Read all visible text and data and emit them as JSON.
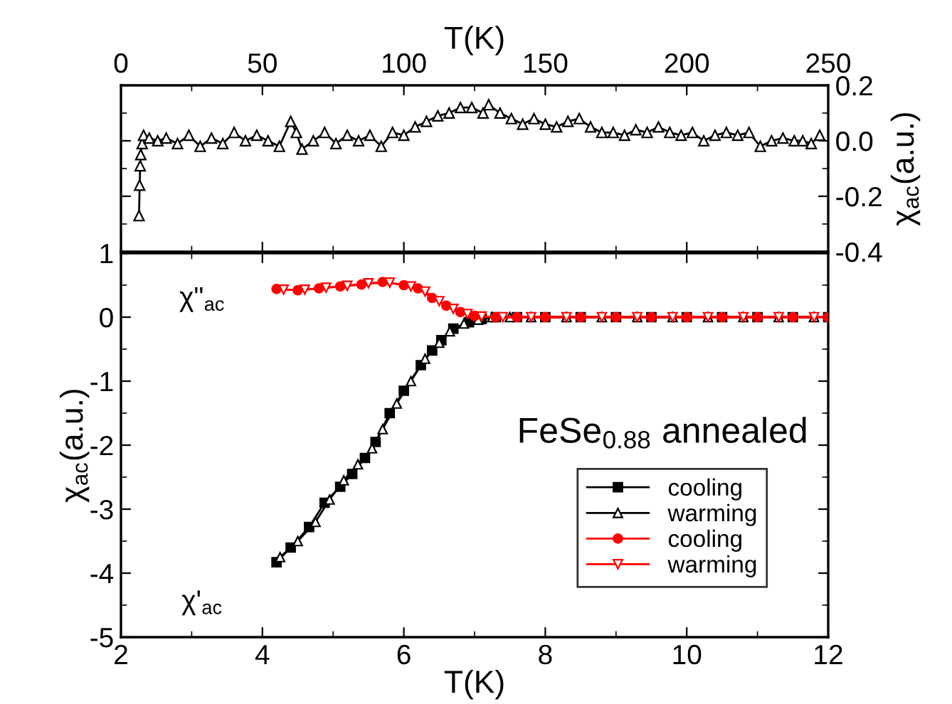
{
  "chart_data": [
    {
      "type": "line",
      "xlabel": "T(K)",
      "ylabel": "χ$_{ac}$(a.u.)",
      "xlim": [
        0,
        250
      ],
      "xticks": [
        0,
        50,
        100,
        150,
        200,
        250
      ],
      "ylim": [
        -0.4,
        0.2
      ],
      "yticks": [
        -0.4,
        -0.2,
        {
          "value": 0,
          "label": "0.0"
        },
        0.2
      ],
      "legend": false,
      "series": [
        {
          "color": "#000000",
          "marker": "triangle",
          "x": [
            6.4,
            6.6,
            6.8,
            7,
            7.5,
            8,
            10,
            13,
            16,
            20,
            24,
            28,
            32,
            36,
            40,
            44,
            48,
            52,
            56,
            60,
            62,
            64,
            68,
            72,
            76,
            80,
            84,
            88,
            92,
            96,
            100,
            104,
            108,
            112,
            116,
            120,
            124,
            128,
            130,
            134,
            138,
            142,
            146,
            150,
            154,
            158,
            162,
            166,
            170,
            174,
            178,
            182,
            186,
            190,
            194,
            198,
            202,
            206,
            210,
            214,
            218,
            222,
            226,
            230,
            234,
            238,
            241,
            244,
            247
          ],
          "values": [
            -0.27,
            -0.16,
            -0.09,
            -0.05,
            -0.01,
            0.02,
            0.01,
            0.0,
            0.01,
            -0.01,
            0.02,
            -0.02,
            0.01,
            -0.01,
            0.03,
            0.0,
            0.02,
            0.0,
            -0.02,
            0.07,
            0.03,
            -0.03,
            0.0,
            0.03,
            -0.01,
            0.02,
            0.0,
            0.02,
            -0.02,
            0.03,
            0.02,
            0.05,
            0.07,
            0.09,
            0.1,
            0.12,
            0.12,
            0.1,
            0.13,
            0.1,
            0.08,
            0.06,
            0.08,
            0.06,
            0.05,
            0.07,
            0.08,
            0.05,
            0.03,
            0.03,
            0.02,
            0.04,
            0.03,
            0.05,
            0.03,
            0.02,
            0.03,
            0.0,
            0.02,
            0.03,
            0.02,
            0.03,
            -0.02,
            0.0,
            0.01,
            0.0,
            0.0,
            -0.01,
            0.02
          ]
        }
      ]
    },
    {
      "type": "line",
      "xlabel": "T(K)",
      "ylabel": "χ$_{ac}$(a.u.)",
      "xlim": [
        2,
        12
      ],
      "xticks": [
        2,
        4,
        6,
        8,
        10,
        12
      ],
      "ylim": [
        -5,
        1
      ],
      "yticks": [
        -5,
        -4,
        -3,
        -2,
        -1,
        0,
        1
      ],
      "legend": "bottom right",
      "annotations": [
        "χ\"$_{ac}$",
        "χ'$_{ac}$",
        "FeSe$_{0.88}$ annealed"
      ],
      "series": [
        {
          "name": "cooling",
          "color": "#000000",
          "marker": "square",
          "x": [
            4.2,
            4.4,
            4.66,
            4.88,
            5.1,
            5.27,
            5.45,
            5.6,
            5.8,
            6.0,
            6.24,
            6.4,
            6.53,
            6.7,
            6.92,
            7.1,
            7.3,
            7.6,
            8.0,
            8.5,
            9.0,
            9.5,
            10.0,
            10.5,
            11.0,
            11.5,
            12.0
          ],
          "values": [
            -3.83,
            -3.6,
            -3.28,
            -2.9,
            -2.65,
            -2.45,
            -2.2,
            -1.95,
            -1.5,
            -1.15,
            -0.75,
            -0.52,
            -0.36,
            -0.18,
            -0.08,
            -0.03,
            0,
            0,
            0,
            0,
            0,
            0,
            0,
            0,
            0,
            0,
            0
          ]
        },
        {
          "name": "warming",
          "color": "#000000",
          "marker": "triangle",
          "x": [
            4.25,
            4.5,
            4.75,
            4.95,
            5.15,
            5.35,
            5.55,
            5.7,
            5.9,
            6.1,
            6.3,
            6.5,
            6.65,
            6.85,
            7.05,
            7.25,
            7.5,
            7.8,
            8.3,
            8.8,
            9.3,
            9.8,
            10.3,
            10.8,
            11.3,
            11.8
          ],
          "values": [
            -3.75,
            -3.5,
            -3.2,
            -2.85,
            -2.55,
            -2.3,
            -2.05,
            -1.75,
            -1.35,
            -1.0,
            -0.65,
            -0.4,
            -0.22,
            -0.1,
            -0.04,
            0,
            0,
            0,
            0,
            0,
            0,
            0,
            0,
            0,
            0,
            0
          ]
        },
        {
          "name": "cooling",
          "color": "#ff0000",
          "marker": "circle",
          "x": [
            4.2,
            4.5,
            4.8,
            5.1,
            5.4,
            5.7,
            6.0,
            6.2,
            6.4,
            6.6,
            6.8,
            7.0,
            7.3,
            7.6,
            8.0,
            8.5,
            9.0,
            9.5,
            10.0,
            10.5,
            11.0,
            11.5,
            12.0
          ],
          "values": [
            0.44,
            0.42,
            0.45,
            0.48,
            0.51,
            0.55,
            0.5,
            0.45,
            0.3,
            0.18,
            0.08,
            0.02,
            0,
            0,
            0,
            0,
            0,
            0,
            0,
            0,
            0,
            0,
            0
          ]
        },
        {
          "name": "warming",
          "color": "#ff0000",
          "marker": "triangle_down",
          "x": [
            4.3,
            4.6,
            4.9,
            5.2,
            5.5,
            5.8,
            6.1,
            6.3,
            6.5,
            6.7,
            6.9,
            7.1,
            7.4,
            7.8,
            8.3,
            8.8,
            9.3,
            9.8,
            10.3,
            10.8,
            11.3,
            11.8
          ],
          "values": [
            0.43,
            0.43,
            0.46,
            0.49,
            0.53,
            0.54,
            0.48,
            0.4,
            0.25,
            0.13,
            0.05,
            0.01,
            0,
            0,
            0,
            0,
            0,
            0,
            0,
            0,
            0,
            0
          ]
        }
      ]
    }
  ]
}
